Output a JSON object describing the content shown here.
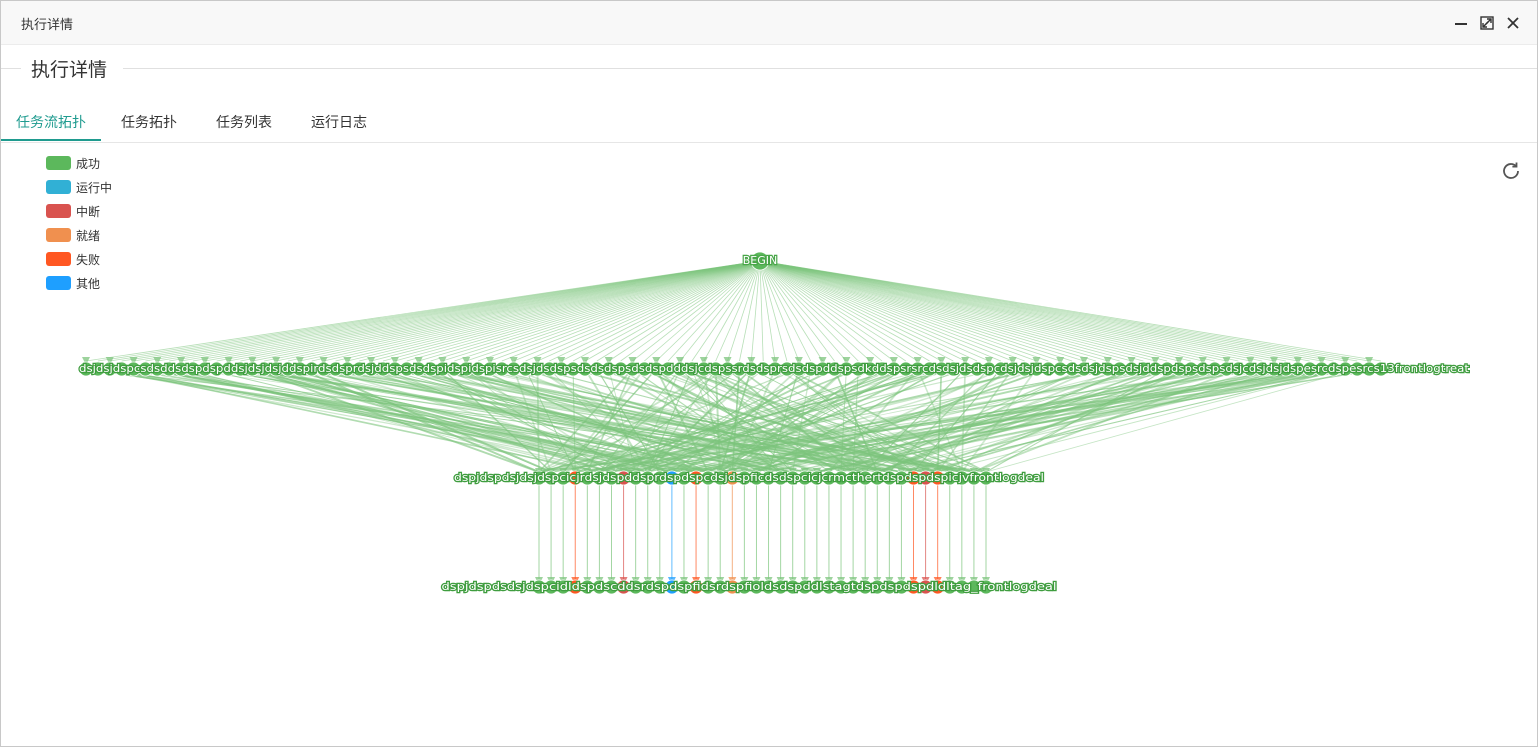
{
  "window": {
    "title": "执行详情"
  },
  "section": {
    "title": "执行详情"
  },
  "tabs": [
    {
      "label": "任务流拓扑",
      "active": true
    },
    {
      "label": "任务拓扑",
      "active": false
    },
    {
      "label": "任务列表",
      "active": false
    },
    {
      "label": "运行日志",
      "active": false
    }
  ],
  "legend": [
    {
      "label": "成功",
      "color": "#5cb85c"
    },
    {
      "label": "运行中",
      "color": "#31b0d5"
    },
    {
      "label": "中断",
      "color": "#d9534f"
    },
    {
      "label": "就绪",
      "color": "#f0904f"
    },
    {
      "label": "失败",
      "color": "#ff5722"
    },
    {
      "label": "其他",
      "color": "#1e9fff"
    }
  ],
  "graph": {
    "root_label": "BEGIN",
    "row1_text": "dsjdsjdspcsdsddsdspdspddsjdsjdsjddspirdsdsprdsjddspsdsdspidspidspisrcsdsjdsdspsdsdsdspsdsdspdddsjcdspssrdsdsprsdsdspddspsdkddspsrsrcdsdsjdsdspcdsjdsjdspcsdsdsjdspsdsjddspdspsdspsdsjcdsjdsjdspesrcdspesrcs13frontlogtreat",
    "row2_text": "dspjdspdsjdsjdspcicjrdsjdspddsprdspdspcdsjdspficdsdspcicjcrmcthertdspdspdspicjvfrontlogdeal",
    "row3_text": "dspjdspdsdsjdspcidldspdscddsrdspdspfidsrdspfioldsdspddlstagtdspdspdspdldltag_frontlogdeal",
    "status_colors": {
      "success": "#5cb85c",
      "success_edge": "#7cc47c",
      "running": "#31b0d5",
      "interrupted": "#d9534f",
      "ready": "#f0904f",
      "failed": "#ff5722",
      "other": "#1e9fff"
    }
  },
  "icons": {
    "minimize": "minimize-icon",
    "maximize": "maximize-icon",
    "close": "close-icon",
    "refresh": "refresh-icon"
  }
}
